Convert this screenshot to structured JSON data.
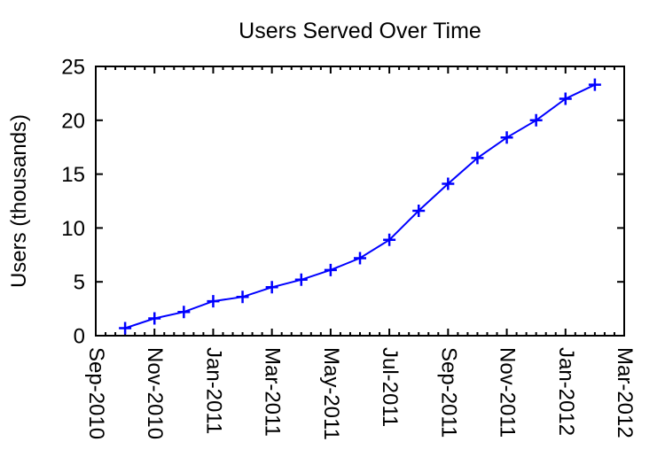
{
  "chart_data": {
    "type": "line",
    "title": "Users Served Over Time",
    "ylabel": "Users (thousands)",
    "xlabel": "",
    "x": [
      "Oct-2010",
      "Nov-2010",
      "Dec-2010",
      "Jan-2011",
      "Feb-2011",
      "Mar-2011",
      "Apr-2011",
      "May-2011",
      "Jun-2011",
      "Jul-2011",
      "Aug-2011",
      "Sep-2011",
      "Oct-2011",
      "Nov-2011",
      "Dec-2011",
      "Jan-2012",
      "Feb-2012"
    ],
    "values": [
      0.7,
      1.6,
      2.2,
      3.2,
      3.6,
      4.5,
      5.2,
      6.1,
      7.2,
      8.9,
      11.6,
      14.1,
      16.5,
      18.4,
      20.0,
      22.0,
      23.3
    ],
    "x_axis": {
      "tick_labels": [
        "Sep-2010",
        "Nov-2010",
        "Jan-2011",
        "Mar-2011",
        "May-2011",
        "Jul-2011",
        "Sep-2011",
        "Nov-2011",
        "Jan-2012",
        "Mar-2012"
      ],
      "months_span": 18,
      "months_per_major_tick": 2,
      "minor_ticks_per_month": 3,
      "first_point_month_index": 1,
      "label_rotation_deg": 90
    },
    "y_axis": {
      "ticks": [
        0,
        5,
        10,
        15,
        20,
        25
      ],
      "ylim": [
        0,
        25
      ]
    },
    "style": {
      "line_color": "#0000ff",
      "axis_color": "#000000",
      "background": "#ffffff",
      "marker": "plus"
    },
    "legend": null,
    "grid": false
  }
}
